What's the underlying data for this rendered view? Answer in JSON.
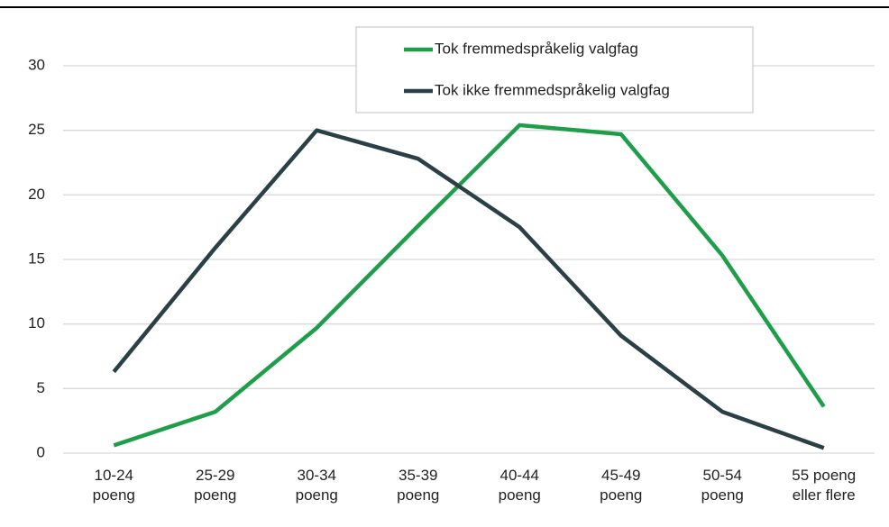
{
  "chart_data": {
    "type": "line",
    "categories": [
      "10-24\npoeng",
      "25-29\npoeng",
      "30-34\npoeng",
      "35-39\npoeng",
      "40-44\npoeng",
      "45-49\npoeng",
      "50-54\npoeng",
      "55 poeng\neller flere"
    ],
    "series": [
      {
        "name": "Tok fremmedspråkelig valgfag",
        "color": "#1f9e4a",
        "values": [
          0.6,
          3.2,
          9.7,
          17.6,
          25.4,
          24.7,
          15.3,
          3.6
        ]
      },
      {
        "name": "Tok ikke fremmedspråkelig valgfag",
        "color": "#2b3f47",
        "values": [
          6.3,
          15.9,
          25.0,
          22.8,
          17.5,
          9.1,
          3.2,
          0.4
        ]
      }
    ],
    "ylim": [
      0,
      30
    ],
    "yticks": [
      0,
      5,
      10,
      15,
      20,
      25,
      30
    ],
    "grid": true,
    "legend": "top"
  }
}
